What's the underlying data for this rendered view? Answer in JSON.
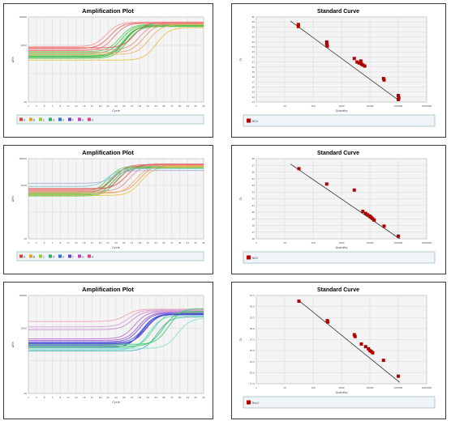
{
  "colors": {
    "panel_border": "#3a3a3a",
    "plot_bg": "#f4f4f4",
    "grid": "#d7d7d7",
    "legend_bg": "#eef4f8",
    "std_point": "#b00000",
    "std_line": "#333333"
  },
  "chart_data": [
    {
      "panel": "amp-1",
      "type": "line",
      "title": "Amplification Plot",
      "xlabel": "Cycle",
      "ylabel": "ΔRn",
      "x_ticks": [
        "1",
        "3",
        "5",
        "7",
        "9",
        "11",
        "13",
        "15",
        "17",
        "19",
        "21",
        "23",
        "25",
        "27",
        "29",
        "31",
        "33",
        "35",
        "37",
        "39",
        "41",
        "43",
        "45"
      ],
      "y_ticks": [
        "10000",
        "1000",
        "10"
      ],
      "ylim": [
        10,
        10000
      ],
      "y_scale": "log",
      "legend": [
        "A",
        "B",
        "C",
        "D",
        "E",
        "F",
        "G",
        "H"
      ],
      "legend_colors": [
        "#d94040",
        "#e8a020",
        "#9acc30",
        "#30b060",
        "#3070d0",
        "#7040c0",
        "#c040c0",
        "#e04080"
      ],
      "series": [
        {
          "color": "#3fbf3f",
          "baseline": 520,
          "plateau": 5200,
          "midpoint": 26
        },
        {
          "color": "#56c856",
          "baseline": 430,
          "plateau": 4800,
          "midpoint": 26.5
        },
        {
          "color": "#2fae4a",
          "baseline": 380,
          "plateau": 5000,
          "midpoint": 27
        },
        {
          "color": "#5acd5a",
          "baseline": 600,
          "plateau": 5500,
          "midpoint": 25.5
        },
        {
          "color": "#45c245",
          "baseline": 350,
          "plateau": 4600,
          "midpoint": 27.5
        },
        {
          "color": "#6dd46d",
          "baseline": 470,
          "plateau": 5100,
          "midpoint": 28
        },
        {
          "color": "#35b635",
          "baseline": 410,
          "plateau": 4900,
          "midpoint": 26.8
        },
        {
          "color": "#e86060",
          "baseline": 780,
          "plateau": 6200,
          "midpoint": 23
        },
        {
          "color": "#f07878",
          "baseline": 650,
          "plateau": 6000,
          "midpoint": 24
        },
        {
          "color": "#e05050",
          "baseline": 820,
          "plateau": 6400,
          "midpoint": 29
        },
        {
          "color": "#f08a8a",
          "baseline": 700,
          "plateau": 5900,
          "midpoint": 30.5
        },
        {
          "color": "#e89a6a",
          "baseline": 560,
          "plateau": 5600,
          "midpoint": 31.5
        },
        {
          "color": "#f0b060",
          "baseline": 480,
          "plateau": 5300,
          "midpoint": 33
        },
        {
          "color": "#e6c040",
          "baseline": 300,
          "plateau": 4200,
          "midpoint": 35
        },
        {
          "color": "#ff9090",
          "baseline": 900,
          "plateau": 6600,
          "midpoint": 22
        }
      ]
    },
    {
      "panel": "std-1",
      "type": "scatter",
      "title": "Standard Curve",
      "xlabel": "Quantity",
      "ylabel": "Ct",
      "x_scale": "log",
      "x_ticks": [
        "1",
        "10",
        "100",
        "1000",
        "10000",
        "100000",
        "1000000"
      ],
      "y_ticks": [
        "30",
        "29",
        "28",
        "27",
        "26",
        "25",
        "24",
        "23",
        "22",
        "21",
        "20",
        "19",
        "18",
        "17",
        "16",
        "15",
        "14",
        "13"
      ],
      "ylim": [
        13,
        30
      ],
      "legend": [
        "ND4"
      ],
      "fit": {
        "x0": 1.2,
        "y0": 29.2,
        "x1": 5.05,
        "y1": 13.2
      },
      "points": [
        {
          "x": 1.48,
          "y": 28.5
        },
        {
          "x": 1.48,
          "y": 28.1
        },
        {
          "x": 2.48,
          "y": 25.0
        },
        {
          "x": 2.48,
          "y": 24.6
        },
        {
          "x": 2.5,
          "y": 24.2
        },
        {
          "x": 3.45,
          "y": 21.7
        },
        {
          "x": 3.55,
          "y": 21.0
        },
        {
          "x": 3.62,
          "y": 20.8
        },
        {
          "x": 3.7,
          "y": 20.6
        },
        {
          "x": 3.75,
          "y": 20.4
        },
        {
          "x": 3.82,
          "y": 20.2
        },
        {
          "x": 3.68,
          "y": 21.2
        },
        {
          "x": 4.48,
          "y": 17.7
        },
        {
          "x": 4.5,
          "y": 17.4
        },
        {
          "x": 5.0,
          "y": 14.3
        },
        {
          "x": 5.02,
          "y": 13.8
        },
        {
          "x": 5.0,
          "y": 13.5
        }
      ]
    },
    {
      "panel": "amp-2",
      "type": "line",
      "title": "Amplification Plot",
      "xlabel": "Cycle",
      "ylabel": "ΔRn",
      "x_ticks": [
        "1",
        "3",
        "5",
        "7",
        "9",
        "11",
        "13",
        "15",
        "17",
        "19",
        "21",
        "23",
        "25",
        "27",
        "29",
        "31",
        "33",
        "35",
        "37",
        "39",
        "41",
        "43",
        "45"
      ],
      "y_ticks": [
        "10000",
        "1000",
        "10"
      ],
      "ylim": [
        10,
        10000
      ],
      "y_scale": "log",
      "legend": [
        "A",
        "B",
        "C",
        "D",
        "E",
        "F",
        "G",
        "H"
      ],
      "legend_colors": [
        "#d94040",
        "#e8a020",
        "#9acc30",
        "#30b060",
        "#3070d0",
        "#7040c0",
        "#c040c0",
        "#e04080"
      ],
      "series": [
        {
          "color": "#3fbf3f",
          "baseline": 480,
          "plateau": 4900,
          "midpoint": 23
        },
        {
          "color": "#56c856",
          "baseline": 520,
          "plateau": 5100,
          "midpoint": 23.5
        },
        {
          "color": "#2fae4a",
          "baseline": 430,
          "plateau": 4700,
          "midpoint": 24
        },
        {
          "color": "#5acd5a",
          "baseline": 560,
          "plateau": 5300,
          "midpoint": 22.5
        },
        {
          "color": "#45c245",
          "baseline": 400,
          "plateau": 4500,
          "midpoint": 24.5
        },
        {
          "color": "#6dd46d",
          "baseline": 460,
          "plateau": 5000,
          "midpoint": 25
        },
        {
          "color": "#e86060",
          "baseline": 700,
          "plateau": 6000,
          "midpoint": 24.2
        },
        {
          "color": "#f07878",
          "baseline": 640,
          "plateau": 5800,
          "midpoint": 25.5
        },
        {
          "color": "#e05050",
          "baseline": 760,
          "plateau": 6300,
          "midpoint": 27
        },
        {
          "color": "#f08a8a",
          "baseline": 600,
          "plateau": 5700,
          "midpoint": 28
        },
        {
          "color": "#e89a6a",
          "baseline": 540,
          "plateau": 5500,
          "midpoint": 30.5
        },
        {
          "color": "#f0b060",
          "baseline": 500,
          "plateau": 5200,
          "midpoint": 29.5
        },
        {
          "color": "#e6c040",
          "baseline": 420,
          "plateau": 4800,
          "midpoint": 31
        },
        {
          "color": "#a8a8e0",
          "baseline": 1200,
          "plateau": 3600,
          "midpoint": 23
        },
        {
          "color": "#7fd0d0",
          "baseline": 900,
          "plateau": 4200,
          "midpoint": 22
        }
      ]
    },
    {
      "panel": "std-2",
      "type": "scatter",
      "title": "Standard Curve",
      "xlabel": "Quantity",
      "ylabel": "Ct",
      "x_scale": "log",
      "x_ticks": [
        "1",
        "10",
        "100",
        "1000",
        "10000",
        "100000",
        "1000000"
      ],
      "y_ticks": [
        "28",
        "27",
        "26",
        "25",
        "24",
        "23",
        "22",
        "21",
        "20",
        "19",
        "18",
        "17",
        "16"
      ],
      "ylim": [
        16,
        28
      ],
      "legend": [
        "ND5"
      ],
      "fit": {
        "x0": 1.2,
        "y0": 27.2,
        "x1": 5.05,
        "y1": 16.0
      },
      "points": [
        {
          "x": 1.5,
          "y": 26.5
        },
        {
          "x": 2.48,
          "y": 24.2
        },
        {
          "x": 3.45,
          "y": 23.3
        },
        {
          "x": 3.75,
          "y": 20.1
        },
        {
          "x": 3.85,
          "y": 19.8
        },
        {
          "x": 3.92,
          "y": 19.6
        },
        {
          "x": 4.0,
          "y": 19.4
        },
        {
          "x": 4.05,
          "y": 19.2
        },
        {
          "x": 4.1,
          "y": 19.0
        },
        {
          "x": 4.15,
          "y": 18.8
        },
        {
          "x": 4.5,
          "y": 17.9
        },
        {
          "x": 5.0,
          "y": 16.4
        }
      ]
    },
    {
      "panel": "amp-3",
      "type": "line",
      "title": "Amplification Plot",
      "xlabel": "Cycle",
      "ylabel": "ΔRn",
      "x_ticks": [
        "1",
        "3",
        "5",
        "7",
        "9",
        "11",
        "13",
        "15",
        "17",
        "19",
        "21",
        "23",
        "25",
        "27",
        "29",
        "31",
        "33",
        "35",
        "37",
        "39",
        "41",
        "43",
        "45"
      ],
      "y_ticks": [
        "10000",
        "1000",
        "10"
      ],
      "ylim": [
        10,
        10000
      ],
      "y_scale": "log",
      "legend": [],
      "legend_colors": [],
      "series": [
        {
          "color": "#2838c8",
          "baseline": 260,
          "plateau": 2600,
          "midpoint": 31
        },
        {
          "color": "#3a50d8",
          "baseline": 300,
          "plateau": 2800,
          "midpoint": 31.5
        },
        {
          "color": "#5a3ad0",
          "baseline": 340,
          "plateau": 2700,
          "midpoint": 32
        },
        {
          "color": "#7a40d8",
          "baseline": 380,
          "plateau": 2900,
          "midpoint": 30.5
        },
        {
          "color": "#9858d0",
          "baseline": 420,
          "plateau": 3000,
          "midpoint": 30
        },
        {
          "color": "#b868c8",
          "baseline": 470,
          "plateau": 3200,
          "midpoint": 29
        },
        {
          "color": "#c888d8",
          "baseline": 900,
          "plateau": 3400,
          "midpoint": 28
        },
        {
          "color": "#d898d8",
          "baseline": 1100,
          "plateau": 3600,
          "midpoint": 27
        },
        {
          "color": "#e8a0a8",
          "baseline": 1600,
          "plateau": 3800,
          "midpoint": 26
        },
        {
          "color": "#60c8c8",
          "baseline": 220,
          "plateau": 2400,
          "midpoint": 33
        },
        {
          "color": "#3ab0b0",
          "baseline": 200,
          "plateau": 2200,
          "midpoint": 35
        },
        {
          "color": "#58d888",
          "baseline": 250,
          "plateau": 3000,
          "midpoint": 34
        },
        {
          "color": "#40c860",
          "baseline": 280,
          "plateau": 3300,
          "midpoint": 36.5
        },
        {
          "color": "#2ecc71",
          "baseline": 320,
          "plateau": 4000,
          "midpoint": 38
        },
        {
          "color": "#80e0d0",
          "baseline": 240,
          "plateau": 2000,
          "midpoint": 40
        },
        {
          "color": "#4060e0",
          "baseline": 360,
          "plateau": 2600,
          "midpoint": 31.2
        },
        {
          "color": "#5048c8",
          "baseline": 330,
          "plateau": 2700,
          "midpoint": 31.8
        }
      ]
    },
    {
      "panel": "std-3",
      "type": "scatter",
      "title": "Standard Curve",
      "xlabel": "Quantity",
      "ylabel": "Ct",
      "x_scale": "log",
      "x_ticks": [
        "1",
        "10",
        "100",
        "1000",
        "10000",
        "100000",
        "1000000"
      ],
      "y_ticks": [
        "37.5",
        "35.0",
        "32.5",
        "30.0",
        "27.5",
        "25.0",
        "22.5",
        "20.0",
        "17.5"
      ],
      "ylim": [
        17.5,
        37.5
      ],
      "legend": [
        "Rnu2"
      ],
      "fit": {
        "x0": 1.45,
        "y0": 36.6,
        "x1": 5.05,
        "y1": 17.8
      },
      "points": [
        {
          "x": 1.5,
          "y": 36.2
        },
        {
          "x": 2.5,
          "y": 31.8
        },
        {
          "x": 2.52,
          "y": 31.5
        },
        {
          "x": 3.45,
          "y": 28.6
        },
        {
          "x": 3.48,
          "y": 28.2
        },
        {
          "x": 3.7,
          "y": 26.5
        },
        {
          "x": 3.85,
          "y": 25.9
        },
        {
          "x": 3.95,
          "y": 25.4
        },
        {
          "x": 4.0,
          "y": 25.0
        },
        {
          "x": 4.05,
          "y": 24.8
        },
        {
          "x": 4.1,
          "y": 24.5
        },
        {
          "x": 4.48,
          "y": 22.8
        },
        {
          "x": 5.0,
          "y": 19.2
        }
      ]
    }
  ]
}
